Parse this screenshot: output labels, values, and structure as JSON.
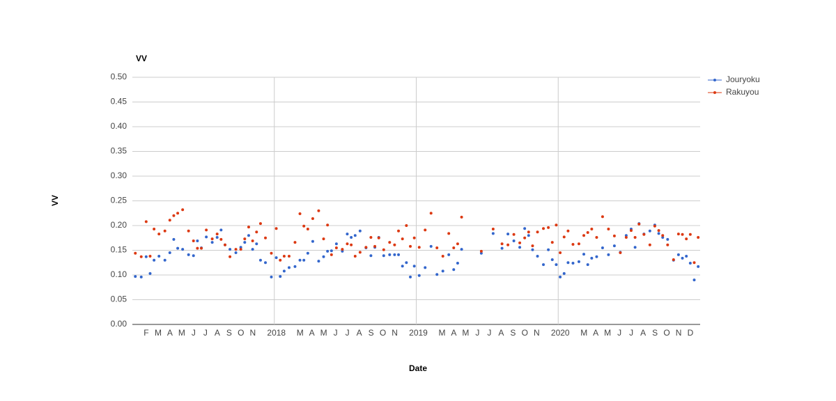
{
  "chart_data": {
    "type": "scatter",
    "title": "VV",
    "x_label": "Date",
    "y_label": "VV",
    "x": [
      "2017-01",
      "2017-01",
      "2017-02",
      "2017-02",
      "2017-02",
      "2017-03",
      "2017-03",
      "2017-04",
      "2017-04",
      "2017-04",
      "2017-05",
      "2017-05",
      "2017-06",
      "2017-06",
      "2017-06",
      "2017-07",
      "2017-07",
      "2017-08",
      "2017-08",
      "2017-08",
      "2017-09",
      "2017-09",
      "2017-10",
      "2017-10",
      "2017-10",
      "2017-11",
      "2017-11",
      "2017-11",
      "2017-12",
      "2017-12",
      "2018-01",
      "2018-01",
      "2018-01",
      "2018-02",
      "2018-02",
      "2018-03",
      "2018-03",
      "2018-03",
      "2018-04",
      "2018-04",
      "2018-05",
      "2018-05",
      "2018-05",
      "2018-06",
      "2018-06",
      "2018-07",
      "2018-07",
      "2018-07",
      "2018-08",
      "2018-08",
      "2018-09",
      "2018-09",
      "2018-09",
      "2018-10",
      "2018-10",
      "2018-11",
      "2018-11",
      "2018-11",
      "2018-12",
      "2018-12",
      "2018-12",
      "2019-01",
      "2019-01",
      "2019-02",
      "2019-02",
      "2019-03",
      "2019-03",
      "2019-04",
      "2019-04",
      "2019-04",
      "2019-06",
      "2019-07",
      "2019-08",
      "2019-08",
      "2019-09",
      "2019-09",
      "2019-10",
      "2019-10",
      "2019-10",
      "2019-11",
      "2019-11",
      "2019-12",
      "2019-12",
      "2019-12",
      "2020-01",
      "2020-01",
      "2020-01",
      "2020-02",
      "2020-02",
      "2020-03",
      "2020-03",
      "2020-03",
      "2020-04",
      "2020-04",
      "2020-05",
      "2020-05",
      "2020-06",
      "2020-06",
      "2020-07",
      "2020-07",
      "2020-07",
      "2020-08",
      "2020-08",
      "2020-09",
      "2020-09",
      "2020-09",
      "2020-10",
      "2020-10",
      "2020-11",
      "2020-11",
      "2020-11",
      "2020-12",
      "2020-12",
      "2020-12"
    ],
    "series": [
      {
        "name": "Jouryoku",
        "color": "#3366cc",
        "values": [
          0.097,
          0.096,
          0.137,
          0.103,
          0.13,
          0.138,
          0.13,
          0.145,
          0.172,
          0.154,
          0.152,
          0.141,
          0.139,
          0.169,
          0.155,
          0.177,
          0.166,
          0.176,
          0.191,
          0.161,
          0.152,
          0.145,
          0.156,
          0.166,
          0.18,
          0.152,
          0.163,
          0.13,
          0.125,
          0.096,
          0.135,
          0.097,
          0.108,
          0.115,
          0.117,
          0.13,
          0.13,
          0.144,
          0.168,
          0.128,
          0.137,
          0.148,
          0.149,
          0.163,
          0.148,
          0.183,
          0.176,
          0.18,
          0.189,
          0.155,
          0.139,
          0.156,
          0.176,
          0.139,
          0.141,
          0.141,
          0.141,
          0.118,
          0.125,
          0.096,
          0.118,
          0.099,
          0.115,
          0.158,
          0.101,
          0.108,
          0.141,
          0.111,
          0.124,
          0.152,
          0.144,
          0.184,
          0.154,
          0.183,
          0.169,
          0.156,
          0.194,
          0.18,
          0.151,
          0.138,
          0.121,
          0.151,
          0.131,
          0.121,
          0.096,
          0.103,
          0.125,
          0.124,
          0.127,
          0.142,
          0.121,
          0.134,
          0.137,
          0.155,
          0.141,
          0.159,
          0.146,
          0.18,
          0.193,
          0.156,
          0.204,
          0.183,
          0.189,
          0.201,
          0.184,
          0.176,
          0.172,
          0.13,
          0.141,
          0.134,
          0.138,
          0.124,
          0.09,
          0.117
        ]
      },
      {
        "name": "Rakuyou",
        "color": "#dc3912",
        "values": [
          0.144,
          0.137,
          0.208,
          0.138,
          0.193,
          0.183,
          0.189,
          0.211,
          0.22,
          0.225,
          0.232,
          0.189,
          0.169,
          0.154,
          0.154,
          0.191,
          0.173,
          0.183,
          0.172,
          0.161,
          0.137,
          0.152,
          0.152,
          0.173,
          0.197,
          0.169,
          0.187,
          0.204,
          0.175,
          0.144,
          0.194,
          0.13,
          0.138,
          0.138,
          0.166,
          0.224,
          0.199,
          0.193,
          0.214,
          0.23,
          0.173,
          0.201,
          0.141,
          0.155,
          0.152,
          0.163,
          0.161,
          0.138,
          0.146,
          0.156,
          0.176,
          0.158,
          0.175,
          0.151,
          0.166,
          0.161,
          0.189,
          0.173,
          0.2,
          0.158,
          0.175,
          0.156,
          0.191,
          0.225,
          0.155,
          0.138,
          0.184,
          0.155,
          0.163,
          0.217,
          0.148,
          0.193,
          0.163,
          0.161,
          0.182,
          0.165,
          0.175,
          0.187,
          0.159,
          0.187,
          0.194,
          0.196,
          0.166,
          0.201,
          0.145,
          0.177,
          0.189,
          0.162,
          0.163,
          0.18,
          0.186,
          0.193,
          0.176,
          0.218,
          0.193,
          0.179,
          0.145,
          0.176,
          0.19,
          0.176,
          0.203,
          0.182,
          0.161,
          0.199,
          0.19,
          0.18,
          0.161,
          0.131,
          0.183,
          0.182,
          0.173,
          0.182,
          0.125,
          0.176
        ]
      }
    ],
    "xlim": [
      "2017-01",
      "2020-12"
    ],
    "xticks": [
      {
        "value": "2017-02",
        "label": "F"
      },
      {
        "value": "2017-03",
        "label": "M"
      },
      {
        "value": "2017-04",
        "label": "A"
      },
      {
        "value": "2017-05",
        "label": "M"
      },
      {
        "value": "2017-06",
        "label": "J"
      },
      {
        "value": "2017-07",
        "label": "J"
      },
      {
        "value": "2017-08",
        "label": "A"
      },
      {
        "value": "2017-09",
        "label": "S"
      },
      {
        "value": "2017-10",
        "label": "O"
      },
      {
        "value": "2017-11",
        "label": "N"
      },
      {
        "value": "2018-01",
        "label": "2018"
      },
      {
        "value": "2018-03",
        "label": "M"
      },
      {
        "value": "2018-04",
        "label": "A"
      },
      {
        "value": "2018-05",
        "label": "M"
      },
      {
        "value": "2018-06",
        "label": "J"
      },
      {
        "value": "2018-07",
        "label": "J"
      },
      {
        "value": "2018-08",
        "label": "A"
      },
      {
        "value": "2018-09",
        "label": "S"
      },
      {
        "value": "2018-10",
        "label": "O"
      },
      {
        "value": "2018-11",
        "label": "N"
      },
      {
        "value": "2019-01",
        "label": "2019"
      },
      {
        "value": "2019-03",
        "label": "M"
      },
      {
        "value": "2019-04",
        "label": "A"
      },
      {
        "value": "2019-05",
        "label": "M"
      },
      {
        "value": "2019-06",
        "label": "J"
      },
      {
        "value": "2019-07",
        "label": "J"
      },
      {
        "value": "2019-08",
        "label": "A"
      },
      {
        "value": "2019-09",
        "label": "S"
      },
      {
        "value": "2019-10",
        "label": "O"
      },
      {
        "value": "2019-11",
        "label": "N"
      },
      {
        "value": "2020-01",
        "label": "2020"
      },
      {
        "value": "2020-03",
        "label": "M"
      },
      {
        "value": "2020-04",
        "label": "A"
      },
      {
        "value": "2020-05",
        "label": "M"
      },
      {
        "value": "2020-06",
        "label": "J"
      },
      {
        "value": "2020-07",
        "label": "J"
      },
      {
        "value": "2020-08",
        "label": "A"
      },
      {
        "value": "2020-09",
        "label": "S"
      },
      {
        "value": "2020-10",
        "label": "O"
      },
      {
        "value": "2020-11",
        "label": "N"
      },
      {
        "value": "2020-12",
        "label": "D"
      }
    ],
    "ylim": [
      0,
      0.5
    ],
    "yticks": [
      {
        "value": 0,
        "label": "0.00"
      },
      {
        "value": 0.05,
        "label": "0.05"
      },
      {
        "value": 0.1,
        "label": "0.10"
      },
      {
        "value": 0.15,
        "label": "0.15"
      },
      {
        "value": 0.2,
        "label": "0.20"
      },
      {
        "value": 0.25,
        "label": "0.25"
      },
      {
        "value": 0.3,
        "label": "0.30"
      },
      {
        "value": 0.35,
        "label": "0.35"
      },
      {
        "value": 0.4,
        "label": "0.40"
      },
      {
        "value": 0.45,
        "label": "0.45"
      },
      {
        "value": 0.5,
        "label": "0.50"
      }
    ],
    "grid": true,
    "legend": "right"
  }
}
